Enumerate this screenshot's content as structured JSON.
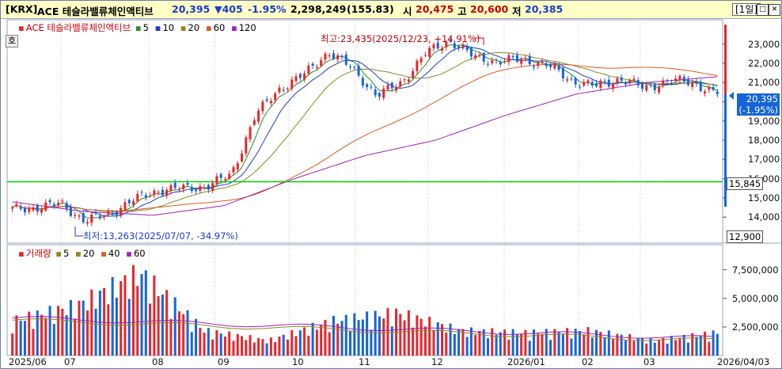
{
  "header": {
    "code": "[KRX]",
    "name": "ACE 테슬라밸류체인액티브",
    "price": "20,395",
    "change": "▼405",
    "change_pct": "-1.95%",
    "volume": "2,298,249",
    "volume_ratio": "(155.83)",
    "open_label": "시",
    "open": "20,475",
    "high_label": "고",
    "high": "20,600",
    "low_label": "저",
    "low": "20,385",
    "period": "[1일]"
  },
  "legend_price": {
    "title": "ACE 테슬라밸류체인액티브",
    "mas": [
      {
        "label": "5",
        "color": "#2a8c2a"
      },
      {
        "label": "10",
        "color": "#1e3cc8"
      },
      {
        "label": "20",
        "color": "#8a8a20"
      },
      {
        "label": "60",
        "color": "#e05a20"
      },
      {
        "label": "120",
        "color": "#a020c0"
      }
    ]
  },
  "legend_volume": {
    "title": "거래량",
    "mas": [
      {
        "label": "5",
        "color": "#8a8a20"
      },
      {
        "label": "20",
        "color": "#8a8a20"
      },
      {
        "label": "40",
        "color": "#e05a20"
      },
      {
        "label": "60",
        "color": "#a020c0"
      }
    ]
  },
  "annotations": {
    "high_label": "최고:23,435(2025/12/23, +14.91%)",
    "low_label": "최저:13,263(2025/07/07, -34.97%)",
    "current_price": "20,395",
    "current_pct": "(-1.95%)",
    "hline_value": "15,845",
    "axis_min": "12,900",
    "toggle": "호"
  },
  "price_axis": [
    "23,000",
    "22,000",
    "21,000",
    "20,000",
    "19,000",
    "18,000",
    "17,000",
    "16,000",
    "15,000",
    "14,000"
  ],
  "volume_axis": [
    "7,500,000",
    "5,000,000",
    "2,500,000"
  ],
  "x_axis": [
    "2025/06",
    "07",
    "08",
    "09",
    "10",
    "11",
    "12",
    "2026/01",
    "02",
    "03",
    "2026/04/03"
  ],
  "colors": {
    "up": "#e8262b",
    "down": "#1565d8",
    "hline": "#00d000",
    "bg": "#ffffff"
  },
  "chart_data": {
    "type": "candlestick",
    "title": "ACE 테슬라밸류체인액티브",
    "period": "daily",
    "x_range": [
      "2025/06",
      "2026/04/03"
    ],
    "ylim": [
      12900,
      23600
    ],
    "volume_ylim": [
      0,
      9000000
    ],
    "high": {
      "value": 23435,
      "date": "2025/12/23",
      "pct": 14.91
    },
    "low": {
      "value": 13263,
      "date": "2025/07/07",
      "pct": -34.97
    },
    "last": {
      "value": 20395,
      "pct": -1.95
    },
    "horizontal_line": 15845,
    "close_path": [
      [
        "2025/06",
        14400
      ],
      [
        "2025/06",
        14500
      ],
      [
        "2025/07",
        14700
      ],
      [
        "2025/07",
        13800
      ],
      [
        "2025/07",
        14200
      ],
      [
        "2025/08",
        14900
      ],
      [
        "2025/08",
        15400
      ],
      [
        "2025/08",
        15500
      ],
      [
        "2025/09",
        15600
      ],
      [
        "2025/09",
        16200
      ],
      [
        "2025/10",
        19300
      ],
      [
        "2025/10",
        20700
      ],
      [
        "2025/10",
        21400
      ],
      [
        "2025/11",
        22600
      ],
      [
        "2025/11",
        21700
      ],
      [
        "2025/11",
        20300
      ],
      [
        "2025/12",
        21000
      ],
      [
        "2025/12",
        22500
      ],
      [
        "2025/12",
        23200
      ],
      [
        "2025/12",
        22300
      ],
      [
        "2026/01",
        22100
      ],
      [
        "2026/01",
        22200
      ],
      [
        "2026/01",
        21900
      ],
      [
        "2026/02",
        21100
      ],
      [
        "2026/02",
        20800
      ],
      [
        "2026/02",
        21200
      ],
      [
        "2026/03",
        20700
      ],
      [
        "2026/03",
        21100
      ],
      [
        "2026/03",
        21000
      ],
      [
        "2026/04/03",
        20395
      ]
    ],
    "ma120_path": [
      [
        "2025/06",
        14800
      ],
      [
        "2025/07",
        14300
      ],
      [
        "2025/08",
        14100
      ],
      [
        "2025/09",
        14600
      ],
      [
        "2025/10",
        16000
      ],
      [
        "2025/11",
        17200
      ],
      [
        "2025/12",
        18000
      ],
      [
        "2026/01",
        19300
      ],
      [
        "2026/02",
        20400
      ],
      [
        "2026/03",
        21000
      ],
      [
        "2026/04/03",
        21300
      ]
    ],
    "volume_path": [
      [
        "2025/06",
        3500000
      ],
      [
        "2025/07",
        5000000
      ],
      [
        "2025/07",
        8300000
      ],
      [
        "2025/08",
        2500000
      ],
      [
        "2025/09",
        1500000
      ],
      [
        "2025/10",
        3500000
      ],
      [
        "2025/11",
        4300000
      ],
      [
        "2025/12",
        2500000
      ],
      [
        "2026/01",
        2300000
      ],
      [
        "2026/02",
        2500000
      ],
      [
        "2026/03",
        1500000
      ],
      [
        "2026/04/03",
        2300000
      ]
    ]
  }
}
